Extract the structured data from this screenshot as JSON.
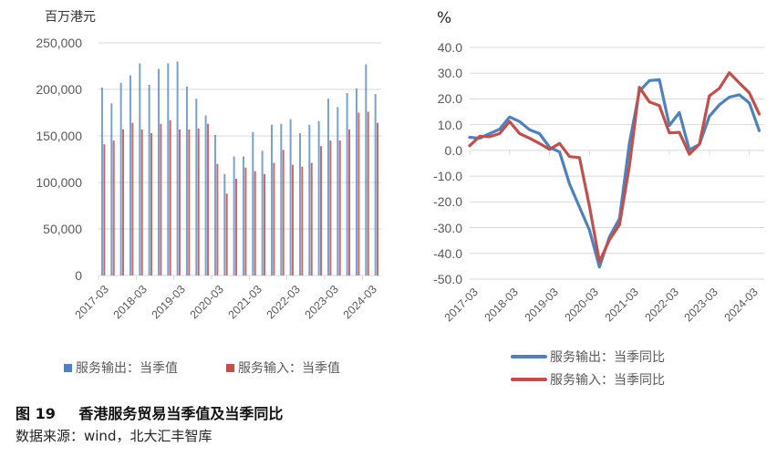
{
  "caption": {
    "figure_label": "图 19",
    "title": "香港服务贸易当季值及当季同比",
    "source": "数据来源：wind，北大汇丰智库"
  },
  "colors": {
    "export": "#4f81bd",
    "import": "#c0504d",
    "grid": "#d9d9d9",
    "axis_text": "#595959"
  },
  "chart_data": [
    {
      "type": "bar",
      "title": "",
      "ylabel": "百万港元",
      "xlabel": "",
      "ylim": [
        0,
        250000
      ],
      "yticks": [
        "250,000",
        "200,000",
        "150,000",
        "100,000",
        "50,000",
        "0"
      ],
      "xtick_labels": [
        "2017-03",
        "2018-03",
        "2019-03",
        "2020-03",
        "2021-03",
        "2022-03",
        "2023-03",
        "2024-03"
      ],
      "grid": true,
      "legend_position": "bottom",
      "categories": [
        "2017-03",
        "2017-06",
        "2017-09",
        "2017-12",
        "2018-03",
        "2018-06",
        "2018-09",
        "2018-12",
        "2019-03",
        "2019-06",
        "2019-09",
        "2019-12",
        "2020-03",
        "2020-06",
        "2020-09",
        "2020-12",
        "2021-03",
        "2021-06",
        "2021-09",
        "2021-12",
        "2022-03",
        "2022-06",
        "2022-09",
        "2022-12",
        "2023-03",
        "2023-06",
        "2023-09",
        "2023-12",
        "2024-03",
        "2024-06"
      ],
      "series": [
        {
          "name": "服务输出：当季值",
          "color": "#4f81bd",
          "values": [
            202000,
            185000,
            207000,
            215000,
            228000,
            205000,
            222000,
            228000,
            230000,
            203000,
            190000,
            172000,
            151000,
            109000,
            128000,
            128000,
            154000,
            134000,
            162000,
            163000,
            168000,
            153000,
            162000,
            166000,
            190000,
            181000,
            196000,
            201000,
            227000,
            195000
          ]
        },
        {
          "name": "服务输入：当季值",
          "color": "#c0504d",
          "values": [
            141000,
            145000,
            157000,
            164000,
            157000,
            153000,
            163000,
            167000,
            157000,
            157000,
            158000,
            163000,
            120000,
            88000,
            104000,
            116000,
            112000,
            109000,
            121000,
            135000,
            119000,
            117000,
            121000,
            139000,
            145000,
            145000,
            157000,
            175000,
            176000,
            164000
          ]
        }
      ]
    },
    {
      "type": "line",
      "title": "",
      "ylabel": "%",
      "xlabel": "",
      "ylim": [
        -50,
        40
      ],
      "yticks": [
        "40.0",
        "30.0",
        "20.0",
        "10.0",
        "0.0",
        "-10.0",
        "-20.0",
        "-30.0",
        "-40.0",
        "-50.0"
      ],
      "xtick_labels": [
        "2017-03",
        "2018-03",
        "2019-03",
        "2020-03",
        "2021-03",
        "2022-03",
        "2023-03",
        "2024-03"
      ],
      "grid": true,
      "legend_position": "bottom",
      "categories": [
        "2017-03",
        "2017-06",
        "2017-09",
        "2017-12",
        "2018-03",
        "2018-06",
        "2018-09",
        "2018-12",
        "2019-03",
        "2019-06",
        "2019-09",
        "2019-12",
        "2020-03",
        "2020-06",
        "2020-09",
        "2020-12",
        "2021-03",
        "2021-06",
        "2021-09",
        "2021-12",
        "2022-03",
        "2022-06",
        "2022-09",
        "2022-12",
        "2023-03",
        "2023-06",
        "2023-09",
        "2023-12",
        "2024-03",
        "2024-06"
      ],
      "series": [
        {
          "name": "服务输出：当季同比",
          "color": "#4f81bd",
          "values": [
            5.1,
            4.7,
            6.5,
            8.2,
            13.0,
            11.2,
            8.0,
            6.5,
            1.2,
            -0.6,
            -13.0,
            -22.0,
            -31.0,
            -45.3,
            -33.6,
            -26.5,
            2.9,
            23.0,
            27.1,
            27.5,
            9.7,
            14.7,
            0.2,
            2.3,
            13.2,
            17.7,
            20.7,
            21.6,
            18.5,
            7.7
          ]
        },
        {
          "name": "服务输入：当季同比",
          "color": "#c0504d",
          "values": [
            1.8,
            5.5,
            5.3,
            6.5,
            11.2,
            6.5,
            4.7,
            2.7,
            0.4,
            2.7,
            -2.4,
            -2.8,
            -21.8,
            -43.2,
            -34.7,
            -28.9,
            -5.9,
            24.5,
            18.8,
            17.4,
            6.8,
            7.0,
            -1.5,
            2.4,
            21.2,
            24.1,
            30.2,
            26.2,
            22.4,
            14.1
          ]
        }
      ]
    }
  ],
  "left_chart": {
    "unit": "百万港元",
    "yticks": [
      "250,000",
      "200,000",
      "150,000",
      "100,000",
      "50,000",
      "0"
    ],
    "xticks": [
      "2017-03",
      "2018-03",
      "2019-03",
      "2020-03",
      "2021-03",
      "2022-03",
      "2023-03",
      "2024-03"
    ],
    "legend": [
      {
        "label": "服务输出：当季值",
        "icon": "blue-square"
      },
      {
        "label": "服务输入：当季值",
        "icon": "red-square"
      }
    ]
  },
  "right_chart": {
    "unit": "%",
    "yticks": [
      "40.0",
      "30.0",
      "20.0",
      "10.0",
      "0.0",
      "-10.0",
      "-20.0",
      "-30.0",
      "-40.0",
      "-50.0"
    ],
    "xticks": [
      "2017-03",
      "2018-03",
      "2019-03",
      "2020-03",
      "2021-03",
      "2022-03",
      "2023-03",
      "2024-03"
    ],
    "legend": [
      {
        "label": "服务输出：当季同比",
        "icon": "blue-line"
      },
      {
        "label": "服务输入：当季同比",
        "icon": "red-line"
      }
    ]
  }
}
